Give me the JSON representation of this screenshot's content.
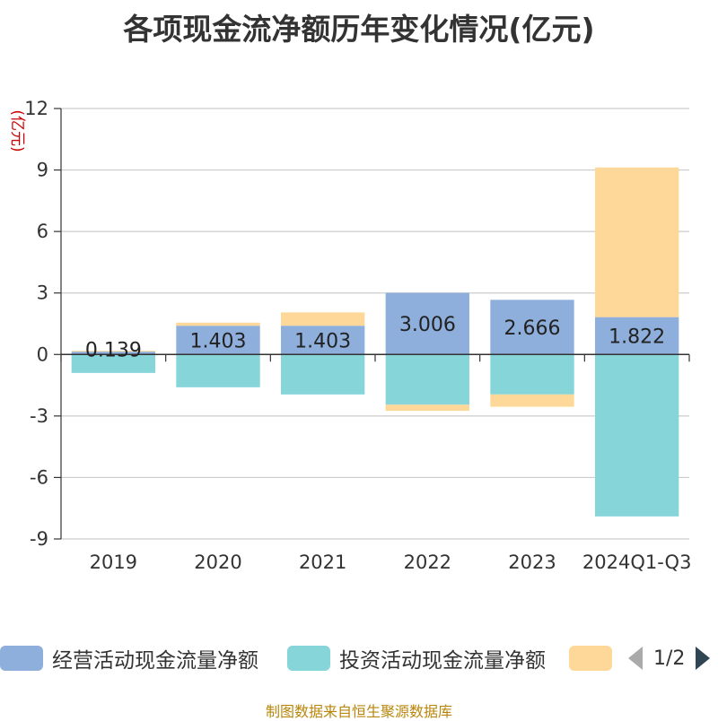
{
  "title": "各项现金流净额历年变化情况(亿元)",
  "source": "制图数据来自恒生聚源数据库",
  "legend": {
    "page_text": "1/2"
  },
  "chart_data": {
    "type": "bar",
    "stacked": true,
    "title": "各项现金流净额历年变化情况(亿元)",
    "ylabel": "(亿元)",
    "xlabel": "",
    "ylim": [
      -9,
      12
    ],
    "yticks": [
      -9,
      -6,
      -3,
      0,
      3,
      6,
      9,
      12
    ],
    "categories": [
      "2019",
      "2020",
      "2021",
      "2022",
      "2023",
      "2024Q1-Q3"
    ],
    "series": [
      {
        "name": "经营活动现金流量净额",
        "color": "#8eaedb",
        "values": [
          0.139,
          1.403,
          1.403,
          3.006,
          2.666,
          1.822
        ]
      },
      {
        "name": "投资活动现金流量净额",
        "color": "#86d5d8",
        "values": [
          -0.9,
          -1.6,
          -1.95,
          -2.45,
          -1.95,
          -7.9
        ]
      },
      {
        "name": "",
        "color": "#fdd899",
        "values": [
          0.04,
          0.15,
          0.65,
          -0.3,
          -0.6,
          7.3
        ]
      }
    ],
    "data_labels": [
      "0.139",
      "1.403",
      "1.403",
      "3.006",
      "2.666",
      "1.822"
    ],
    "axis_color": "#333333",
    "grid_color": "#cccccc",
    "ylabel_color": "#cc0000"
  }
}
